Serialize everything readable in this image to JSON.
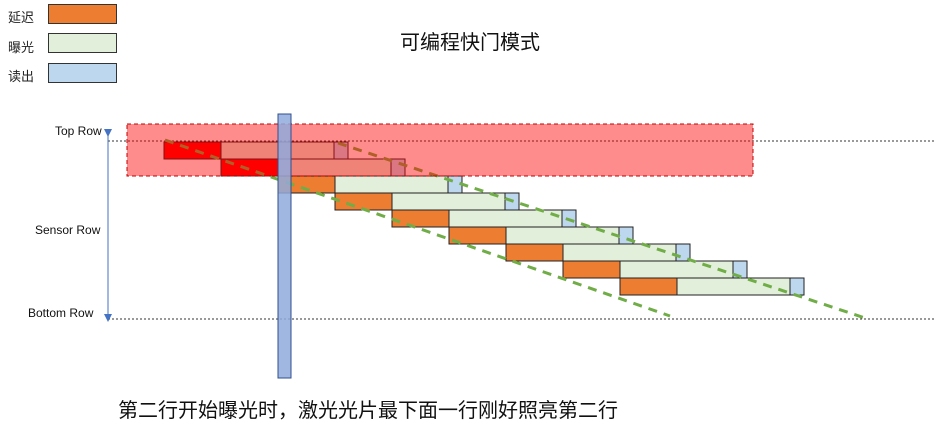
{
  "legend": {
    "items": [
      {
        "label": "延迟",
        "color": "#ED7D31"
      },
      {
        "label": "曝光",
        "color": "#E2EFDA"
      },
      {
        "label": "读出",
        "color": "#BDD7EE"
      }
    ]
  },
  "title": "可编程快门模式",
  "rows": {
    "top_label": "Top Row",
    "middle_label": "Sensor Row",
    "bottom_label": "Bottom Row"
  },
  "caption": "第二行开始曝光时，激光光片最下面一行刚好照亮第二行",
  "colors": {
    "delay": "#ED7D31",
    "exposure": "#E2EFDA",
    "readout": "#BDD7EE",
    "highlight": "#FF0000",
    "laser_sheet": "#8FAADC",
    "diagonal": "#70AD47",
    "arrow": "#4472C4"
  },
  "sensor_rows": 9
}
